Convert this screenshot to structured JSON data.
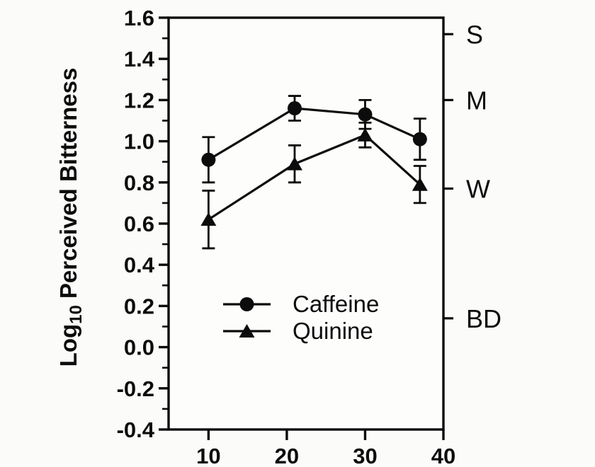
{
  "figure": {
    "background": "#fbfbfa",
    "plot_background": "#fdfdfc",
    "ink": "#0c0c0c"
  },
  "chart_data": {
    "type": "line",
    "x": [
      10,
      21,
      30,
      37
    ],
    "series": [
      {
        "name": "Caffeine",
        "marker": "circle",
        "values": [
          0.91,
          1.16,
          1.13,
          1.01
        ],
        "errors": [
          0.11,
          0.06,
          0.07,
          0.1
        ]
      },
      {
        "name": "Quinine",
        "marker": "triangle",
        "values": [
          0.62,
          0.89,
          1.03,
          0.79
        ],
        "errors": [
          0.14,
          0.09,
          0.06,
          0.09
        ]
      }
    ],
    "title": "",
    "xlabel": "",
    "ylabel": "Log10 Perceived Bitterness",
    "ylabel_parts": {
      "prefix": "Log",
      "subscript": "10",
      "suffix": "Perceived Bitterness"
    },
    "xlim": [
      4.9,
      40
    ],
    "ylim": [
      -0.4,
      1.6
    ],
    "xticks": [
      10,
      20,
      30,
      40
    ],
    "ytick_step": 0.2,
    "ytick_minor_step": 0.1,
    "ytick_decimals": 1,
    "right_axis_labels": [
      {
        "text": "S",
        "value": 1.52
      },
      {
        "text": "M",
        "value": 1.2
      },
      {
        "text": "W",
        "value": 0.77
      },
      {
        "text": "BD",
        "value": 0.14
      }
    ],
    "legend": {
      "position": "inside-bottom-center",
      "entries": [
        "Caffeine",
        "Quinine"
      ]
    },
    "grid": false
  }
}
